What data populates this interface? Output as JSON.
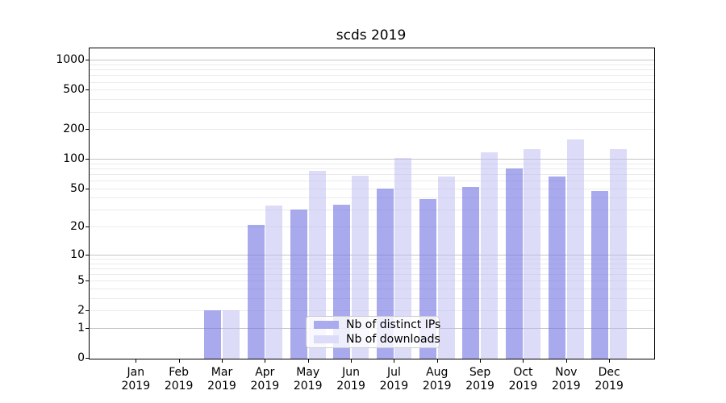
{
  "title": "scds 2019",
  "chart_data": {
    "type": "bar",
    "title": "scds 2019",
    "scale": "log10(1+x)",
    "ylim": [
      0,
      1310
    ],
    "grid": "on",
    "categories": [
      "Jan",
      "Feb",
      "Mar",
      "Apr",
      "May",
      "Jun",
      "Jul",
      "Aug",
      "Sep",
      "Oct",
      "Nov",
      "Dec"
    ],
    "year_label": "2019",
    "y_ticks": [
      0,
      1,
      2,
      5,
      10,
      20,
      50,
      100,
      200,
      500,
      1000
    ],
    "y_grid_major": [
      1,
      10,
      100,
      1000
    ],
    "series": [
      {
        "name": "Nb of distinct IPs",
        "values": [
          0,
          0,
          2,
          21,
          30,
          34,
          50,
          39,
          52,
          80,
          66,
          47
        ],
        "fill": "rgba(116,116,228,0.62)",
        "swatch": "#aaaaee"
      },
      {
        "name": "Nb of downloads",
        "values": [
          0,
          0,
          2,
          33,
          75,
          67,
          103,
          66,
          116,
          126,
          157,
          126
        ],
        "fill": "rgba(185,185,241,0.5)",
        "swatch": "#dcdcf8"
      }
    ],
    "legend_position": "lower center"
  }
}
